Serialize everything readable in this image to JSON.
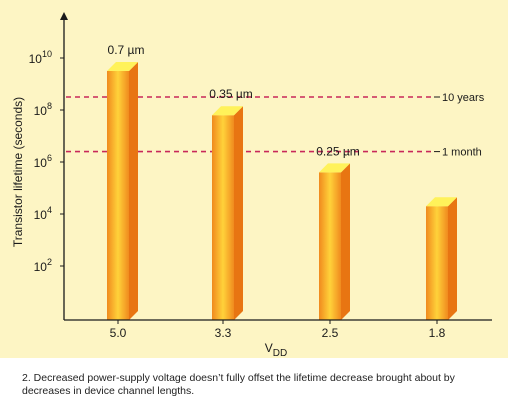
{
  "chart_data": {
    "type": "bar",
    "categories": [
      "5.0",
      "3.3",
      "2.5",
      "1.8"
    ],
    "values": [
      9.5,
      7.8,
      5.6,
      4.3
    ],
    "value_scale": "log10",
    "bar_labels": [
      "0.7 µm",
      "0.35 µm",
      "0.25 µm",
      ""
    ],
    "xlabel": "V",
    "xlabel_sub": "DD",
    "ylabel": "Transistor lifetime (seconds)",
    "y_ticks": [
      2,
      4,
      6,
      8,
      10
    ],
    "ylim_exponent": [
      0,
      10.5
    ],
    "reference_lines": [
      {
        "label": "10 years",
        "exponent": 8.5
      },
      {
        "label": "1 month",
        "exponent": 6.4
      }
    ],
    "colors": {
      "background": "#fdf5c4",
      "bar_edge": "#f08a1e",
      "bar_center": "#ffd23a",
      "bar_top": "#fff25a",
      "bar_side": "#e87512",
      "reference_line": "#c8285a",
      "axis": "#1a1a1a"
    }
  },
  "caption": "2. Decreased power-supply voltage doesn’t fully offset the lifetime decrease brought about by decreases in device channel lengths."
}
